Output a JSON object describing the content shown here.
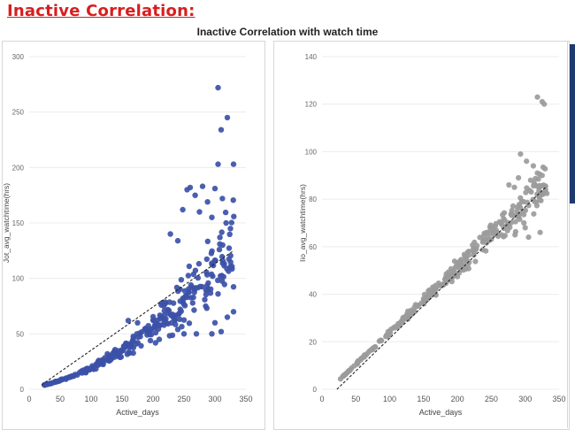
{
  "header": {
    "heading": "Inactive Correlation:",
    "chart_title": "Inactive Correlation with watch time"
  },
  "colors": {
    "heading": "#d81e1e",
    "left_points": "#3c51a8",
    "right_points": "#9b9b9b",
    "trend": "#222222",
    "edge_bar": "#1f3a6e"
  },
  "chart_data": [
    {
      "type": "scatter",
      "title": "Inactive Correlation with watch time",
      "xlabel": "Active_days",
      "ylabel": "Jot_avg_watchtime(hrs)",
      "xlim": [
        0,
        350
      ],
      "ylim": [
        0,
        300
      ],
      "xticks": [
        0,
        50,
        100,
        150,
        200,
        250,
        300,
        350
      ],
      "yticks": [
        0,
        50,
        100,
        150,
        200,
        250,
        300
      ],
      "trendline": {
        "style": "dashed",
        "from": [
          20,
          4
        ],
        "to": [
          330,
          125
        ]
      },
      "outliers": [
        [
          305,
          272
        ],
        [
          320,
          245
        ],
        [
          310,
          234
        ],
        [
          305,
          203
        ],
        [
          330,
          203
        ],
        [
          300,
          181
        ],
        [
          280,
          183
        ],
        [
          260,
          182
        ],
        [
          255,
          180
        ],
        [
          268,
          175
        ],
        [
          248,
          162
        ],
        [
          288,
          169
        ],
        [
          312,
          172
        ],
        [
          275,
          160
        ],
        [
          295,
          155
        ],
        [
          318,
          150
        ],
        [
          308,
          137
        ],
        [
          228,
          140
        ],
        [
          240,
          134
        ],
        [
          325,
          145
        ],
        [
          300,
          60
        ],
        [
          310,
          52
        ],
        [
          295,
          50
        ],
        [
          270,
          50
        ],
        [
          320,
          65
        ],
        [
          250,
          50
        ],
        [
          230,
          60
        ],
        [
          210,
          45
        ],
        [
          240,
          54
        ],
        [
          188,
          55
        ],
        [
          175,
          60
        ],
        [
          160,
          62
        ],
        [
          330,
          70
        ],
        [
          285,
          75
        ]
      ],
      "series": [
        {
          "name": "Jot_avg_watchtime(hrs)",
          "n": 300,
          "x_range": [
            20,
            332
          ],
          "seed": 7,
          "trend": [
            0.0009,
            0.095,
            1.0
          ],
          "spread": [
            0.03,
            0.26
          ]
        }
      ]
    },
    {
      "type": "scatter",
      "title": "",
      "xlabel": "Active_days",
      "ylabel": "Iio_avg_watchtime(hrs)",
      "xlim": [
        0,
        350
      ],
      "ylim": [
        0,
        140
      ],
      "xticks": [
        0,
        50,
        100,
        150,
        200,
        250,
        300,
        350
      ],
      "yticks": [
        0,
        20,
        40,
        60,
        80,
        100,
        120,
        140
      ],
      "trendline": {
        "style": "dashed",
        "from": [
          22,
          0
        ],
        "to": [
          330,
          85
        ]
      },
      "outliers": [
        [
          318,
          123
        ],
        [
          325,
          121
        ],
        [
          328,
          120
        ],
        [
          293,
          99
        ],
        [
          302,
          96
        ],
        [
          312,
          94
        ],
        [
          318,
          91
        ],
        [
          325,
          90
        ],
        [
          308,
          88
        ],
        [
          290,
          89
        ],
        [
          284,
          85
        ],
        [
          276,
          86
        ],
        [
          330,
          84
        ],
        [
          322,
          82
        ],
        [
          314,
          79
        ],
        [
          298,
          70
        ],
        [
          305,
          64
        ],
        [
          322,
          66
        ],
        [
          285,
          65
        ],
        [
          300,
          68
        ],
        [
          275,
          70
        ],
        [
          265,
          65
        ],
        [
          252,
          68
        ]
      ],
      "series": [
        {
          "name": "Iio_avg_watchtime(hrs)",
          "n": 300,
          "x_range": [
            20,
            332
          ],
          "seed": 11,
          "trend": [
            0.0,
            0.27,
            -3.0
          ],
          "spread": [
            0.02,
            0.07
          ]
        }
      ]
    }
  ]
}
